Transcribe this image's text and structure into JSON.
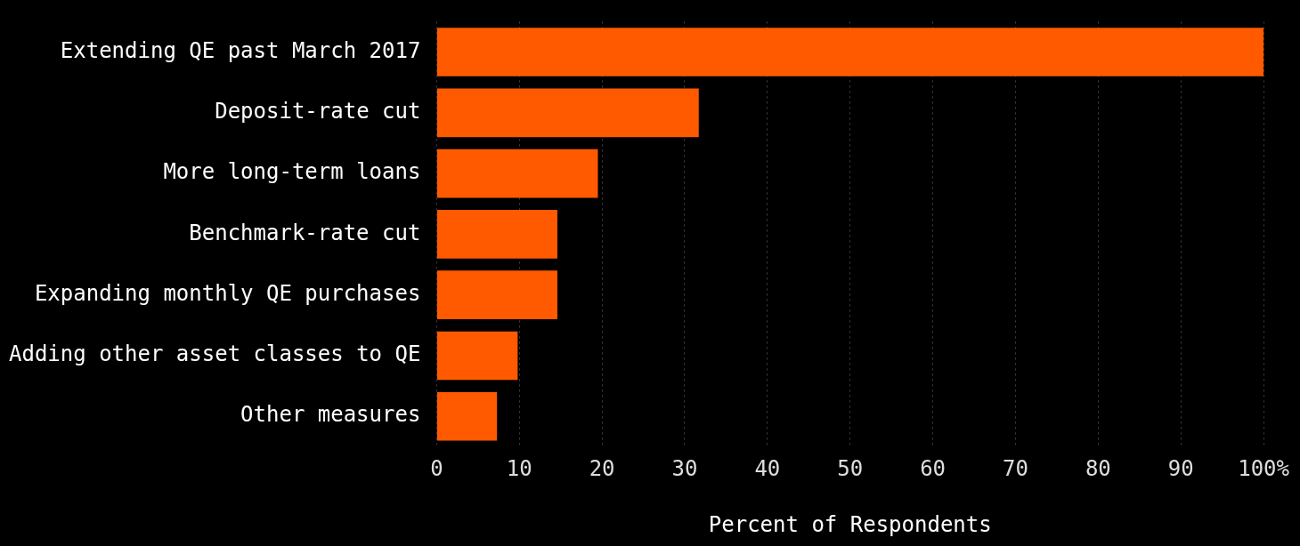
{
  "chart_data": {
    "type": "bar",
    "orientation": "horizontal",
    "xlabel": "Percent of Respondents",
    "categories": [
      "Extending QE past March 2017",
      "Deposit-rate cut",
      "More long-term loans",
      "Benchmark-rate cut",
      "Expanding monthly QE purchases",
      "Adding other asset classes to QE",
      "Other measures"
    ],
    "values": [
      100,
      31.7,
      19.5,
      14.6,
      14.6,
      9.8,
      7.3
    ],
    "color": "#ff5a00",
    "xlim": [
      0,
      100
    ],
    "xticks": [
      0,
      10,
      20,
      30,
      40,
      50,
      60,
      70,
      80,
      90,
      {
        "value": 100,
        "label": "100%"
      }
    ],
    "grid": "x",
    "legend": false
  }
}
